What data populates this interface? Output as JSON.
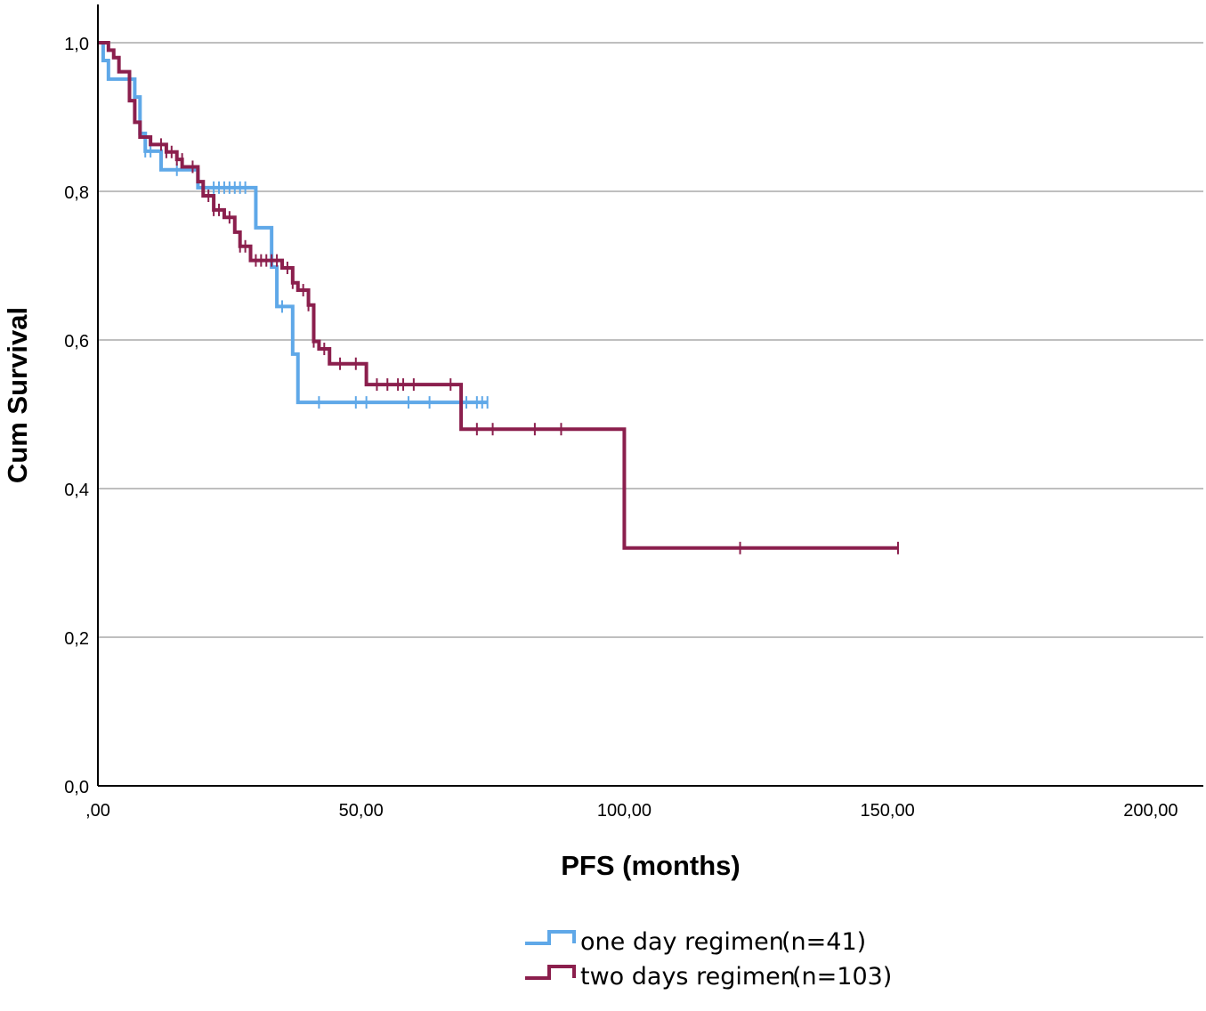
{
  "chart_data": {
    "type": "line",
    "subtype": "kaplan-meier step",
    "title": "",
    "xlabel": "PFS (months)",
    "ylabel": "Cum Survival",
    "xlim": [
      0,
      210
    ],
    "ylim": [
      0,
      1.0
    ],
    "x_ticks": [
      0,
      50,
      100,
      150,
      200
    ],
    "x_tick_labels": [
      ",00",
      "50,00",
      "100,00",
      "150,00",
      "200,00"
    ],
    "y_ticks": [
      0,
      0.2,
      0.4,
      0.6,
      0.8,
      1.0
    ],
    "y_tick_labels": [
      "0,0",
      "0,2",
      "0,4",
      "0,6",
      "0,8",
      "1,0"
    ],
    "grid": "horizontal",
    "legend_position": "bottom-center",
    "series": [
      {
        "name": "one day regimen",
        "n_label": "(n=41)",
        "color": "#5fa8e8",
        "steps": [
          [
            0,
            1.0
          ],
          [
            1,
            0.976
          ],
          [
            2,
            0.951
          ],
          [
            7,
            0.927
          ],
          [
            8,
            0.878
          ],
          [
            9,
            0.854
          ],
          [
            12,
            0.829
          ],
          [
            19,
            0.805
          ],
          [
            30,
            0.751
          ],
          [
            33,
            0.698
          ],
          [
            34,
            0.645
          ],
          [
            37,
            0.581
          ],
          [
            38,
            0.516
          ],
          [
            74,
            0.516
          ]
        ],
        "censored": [
          [
            9,
            0.854
          ],
          [
            10,
            0.854
          ],
          [
            15,
            0.829
          ],
          [
            22,
            0.805
          ],
          [
            23,
            0.805
          ],
          [
            24,
            0.805
          ],
          [
            25,
            0.805
          ],
          [
            26,
            0.805
          ],
          [
            27,
            0.805
          ],
          [
            28,
            0.805
          ],
          [
            35,
            0.645
          ],
          [
            42,
            0.516
          ],
          [
            49,
            0.516
          ],
          [
            51,
            0.516
          ],
          [
            59,
            0.516
          ],
          [
            63,
            0.516
          ],
          [
            70,
            0.516
          ],
          [
            72,
            0.516
          ],
          [
            73,
            0.516
          ],
          [
            74,
            0.516
          ]
        ]
      },
      {
        "name": "two days regimen",
        "n_label": "(n=103)",
        "color": "#8b1f4d",
        "steps": [
          [
            0,
            1.0
          ],
          [
            2,
            0.99
          ],
          [
            3,
            0.98
          ],
          [
            4,
            0.961
          ],
          [
            6,
            0.922
          ],
          [
            7,
            0.893
          ],
          [
            8,
            0.873
          ],
          [
            10,
            0.863
          ],
          [
            13,
            0.853
          ],
          [
            15,
            0.843
          ],
          [
            16,
            0.833
          ],
          [
            17,
            0.833
          ],
          [
            19,
            0.813
          ],
          [
            20,
            0.794
          ],
          [
            22,
            0.775
          ],
          [
            24,
            0.765
          ],
          [
            26,
            0.745
          ],
          [
            27,
            0.726
          ],
          [
            29,
            0.707
          ],
          [
            35,
            0.697
          ],
          [
            37,
            0.677
          ],
          [
            38,
            0.667
          ],
          [
            40,
            0.647
          ],
          [
            41,
            0.598
          ],
          [
            42,
            0.588
          ],
          [
            44,
            0.568
          ],
          [
            51,
            0.54
          ],
          [
            69,
            0.48
          ],
          [
            100,
            0.32
          ],
          [
            152,
            0.32
          ]
        ],
        "censored": [
          [
            12,
            0.863
          ],
          [
            13,
            0.853
          ],
          [
            14,
            0.853
          ],
          [
            15,
            0.843
          ],
          [
            16,
            0.843
          ],
          [
            18,
            0.833
          ],
          [
            21,
            0.794
          ],
          [
            22,
            0.775
          ],
          [
            23,
            0.775
          ],
          [
            25,
            0.765
          ],
          [
            27,
            0.726
          ],
          [
            28,
            0.726
          ],
          [
            30,
            0.707
          ],
          [
            31,
            0.707
          ],
          [
            32,
            0.707
          ],
          [
            33,
            0.707
          ],
          [
            34,
            0.707
          ],
          [
            36,
            0.697
          ],
          [
            37,
            0.677
          ],
          [
            39,
            0.667
          ],
          [
            40,
            0.647
          ],
          [
            41,
            0.598
          ],
          [
            43,
            0.588
          ],
          [
            46,
            0.568
          ],
          [
            49,
            0.568
          ],
          [
            53,
            0.54
          ],
          [
            55,
            0.54
          ],
          [
            57,
            0.54
          ],
          [
            58,
            0.54
          ],
          [
            60,
            0.54
          ],
          [
            67,
            0.54
          ],
          [
            72,
            0.48
          ],
          [
            75,
            0.48
          ],
          [
            83,
            0.48
          ],
          [
            88,
            0.48
          ],
          [
            122,
            0.32
          ],
          [
            152,
            0.32
          ]
        ]
      }
    ]
  }
}
